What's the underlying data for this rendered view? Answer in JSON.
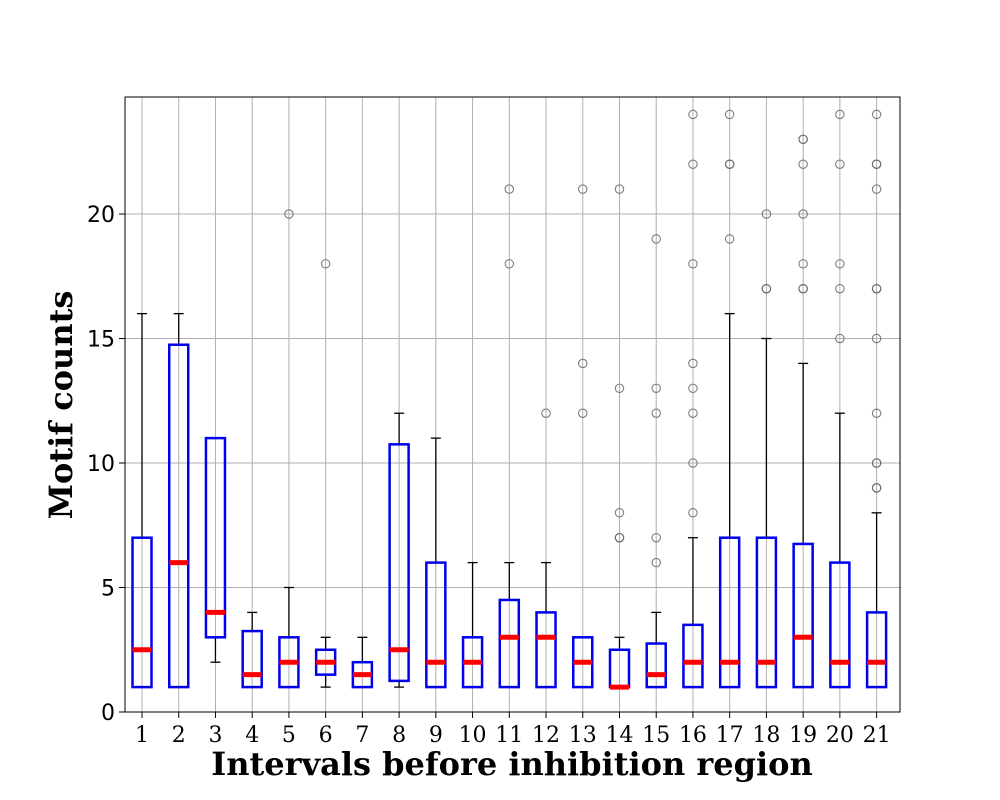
{
  "chart_data": {
    "type": "box",
    "title": "",
    "xlabel": "Intervals before inhibition region",
    "ylabel": "Motif counts",
    "ylim": [
      0,
      24.7
    ],
    "yticks": [
      0,
      5,
      10,
      15,
      20
    ],
    "grid": true,
    "categories": [
      "1",
      "2",
      "3",
      "4",
      "5",
      "6",
      "7",
      "8",
      "9",
      "10",
      "11",
      "12",
      "13",
      "14",
      "15",
      "16",
      "17",
      "18",
      "19",
      "20",
      "21"
    ],
    "boxes": [
      {
        "q1": 1,
        "median": 2.5,
        "q3": 7,
        "whisker_low": 1,
        "whisker_high": 16,
        "outliers": []
      },
      {
        "q1": 1,
        "median": 6,
        "q3": 14.75,
        "whisker_low": 1,
        "whisker_high": 16,
        "outliers": []
      },
      {
        "q1": 3,
        "median": 4,
        "q3": 11,
        "whisker_low": 2,
        "whisker_high": 11,
        "outliers": []
      },
      {
        "q1": 1,
        "median": 1.5,
        "q3": 3.25,
        "whisker_low": 1,
        "whisker_high": 4,
        "outliers": []
      },
      {
        "q1": 1,
        "median": 2,
        "q3": 3,
        "whisker_low": 1,
        "whisker_high": 5,
        "outliers": [
          20
        ]
      },
      {
        "q1": 1.5,
        "median": 2,
        "q3": 2.5,
        "whisker_low": 1,
        "whisker_high": 3,
        "outliers": [
          18
        ]
      },
      {
        "q1": 1,
        "median": 1.5,
        "q3": 2,
        "whisker_low": 1,
        "whisker_high": 3,
        "outliers": []
      },
      {
        "q1": 1.25,
        "median": 2.5,
        "q3": 10.75,
        "whisker_low": 1,
        "whisker_high": 12,
        "outliers": []
      },
      {
        "q1": 1,
        "median": 2,
        "q3": 6,
        "whisker_low": 1,
        "whisker_high": 11,
        "outliers": []
      },
      {
        "q1": 1,
        "median": 2,
        "q3": 3,
        "whisker_low": 1,
        "whisker_high": 6,
        "outliers": []
      },
      {
        "q1": 1,
        "median": 3,
        "q3": 4.5,
        "whisker_low": 1,
        "whisker_high": 6,
        "outliers": [
          18,
          21
        ]
      },
      {
        "q1": 1,
        "median": 3,
        "q3": 4,
        "whisker_low": 1,
        "whisker_high": 6,
        "outliers": [
          12
        ]
      },
      {
        "q1": 1,
        "median": 2,
        "q3": 3,
        "whisker_low": 1,
        "whisker_high": 3,
        "outliers": [
          12,
          14,
          21
        ]
      },
      {
        "q1": 1,
        "median": 1,
        "q3": 2.5,
        "whisker_low": 1,
        "whisker_high": 3,
        "outliers": [
          7,
          7,
          8,
          13,
          21
        ]
      },
      {
        "q1": 1,
        "median": 1.5,
        "q3": 2.75,
        "whisker_low": 1,
        "whisker_high": 4,
        "outliers": [
          6,
          7,
          12,
          13,
          19
        ]
      },
      {
        "q1": 1,
        "median": 2,
        "q3": 3.5,
        "whisker_low": 1,
        "whisker_high": 7,
        "outliers": [
          8,
          10,
          12,
          13,
          14,
          18,
          22,
          24
        ]
      },
      {
        "q1": 1,
        "median": 2,
        "q3": 7,
        "whisker_low": 1,
        "whisker_high": 16,
        "outliers": [
          19,
          22,
          22,
          24
        ]
      },
      {
        "q1": 1,
        "median": 2,
        "q3": 7,
        "whisker_low": 1,
        "whisker_high": 15,
        "outliers": [
          17,
          17,
          20
        ]
      },
      {
        "q1": 1,
        "median": 3,
        "q3": 6.75,
        "whisker_low": 1,
        "whisker_high": 14,
        "outliers": [
          17,
          17,
          18,
          20,
          22,
          23,
          23
        ]
      },
      {
        "q1": 1,
        "median": 2,
        "q3": 6,
        "whisker_low": 1,
        "whisker_high": 12,
        "outliers": [
          15,
          17,
          18,
          22,
          24
        ]
      },
      {
        "q1": 1,
        "median": 2,
        "q3": 4,
        "whisker_low": 1,
        "whisker_high": 8,
        "outliers": [
          9,
          9,
          10,
          10,
          12,
          15,
          17,
          17,
          21,
          22,
          22,
          24
        ]
      }
    ],
    "colors": {
      "box": "#0000ee",
      "median": "#ff0000",
      "whisker": "#000000",
      "outlier": "#666666",
      "grid": "#b0b0b0"
    }
  }
}
